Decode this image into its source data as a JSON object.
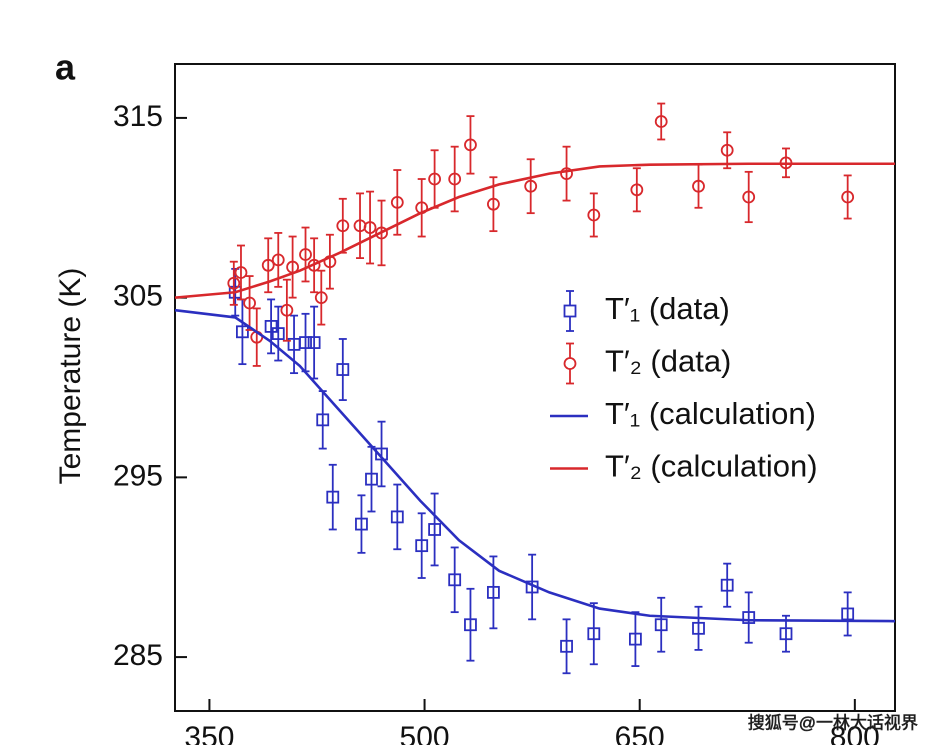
{
  "chart_data": {
    "type": "scatter",
    "panel_label": "a",
    "ylabel": "Temperature (K)",
    "xlim": [
      326,
      828
    ],
    "ylim": [
      282,
      318
    ],
    "xticks": [
      350,
      500,
      650,
      800
    ],
    "yticks": [
      285,
      295,
      305,
      315
    ],
    "legend": "right",
    "watermark": "搜狐号@一林大话视界",
    "series": [
      {
        "name": "T′₁ (data)",
        "color": "#2b2fc0",
        "marker": "square",
        "x": [
          368,
          373,
          393,
          398,
          409,
          417,
          423,
          443,
          429,
          436,
          456,
          463,
          470,
          481,
          498,
          507,
          521,
          532,
          548,
          575,
          599,
          618,
          647,
          665,
          691,
          711,
          726,
          752,
          795
        ],
        "values": [
          305.3,
          303.1,
          303.4,
          303.0,
          302.4,
          302.5,
          302.5,
          301.0,
          298.2,
          293.9,
          292.4,
          294.9,
          296.3,
          292.8,
          291.2,
          292.1,
          289.3,
          286.8,
          288.6,
          288.9,
          285.6,
          286.3,
          286.0,
          286.8,
          286.6,
          289.0,
          287.2,
          286.3,
          287.4
        ],
        "errors": [
          1.3,
          1.8,
          1.5,
          1.5,
          1.6,
          1.6,
          2,
          1.7,
          1.6,
          1.8,
          1.6,
          1.8,
          1.8,
          1.8,
          1.8,
          2,
          1.8,
          2,
          2,
          1.8,
          1.5,
          1.7,
          1.5,
          1.5,
          1.2,
          1.2,
          1.4,
          1,
          1.2
        ]
      },
      {
        "name": "T′₂ (data)",
        "color": "#d8282c",
        "marker": "circle",
        "x": [
          367,
          372,
          378,
          383,
          391,
          398,
          404,
          408,
          417,
          423,
          428,
          434,
          443,
          455,
          462,
          470,
          481,
          498,
          507,
          521,
          532,
          548,
          574,
          599,
          618,
          648,
          665,
          691,
          711,
          726,
          752,
          795
        ],
        "values": [
          305.8,
          306.4,
          304.7,
          302.8,
          306.8,
          307.1,
          304.3,
          306.7,
          307.4,
          306.8,
          305.0,
          307.0,
          309.0,
          309.0,
          308.9,
          308.6,
          310.3,
          310.0,
          311.6,
          311.6,
          313.5,
          310.2,
          311.2,
          311.9,
          309.6,
          311.0,
          314.8,
          311.2,
          313.2,
          310.6,
          312.5,
          310.6
        ],
        "errors": [
          1.2,
          1.5,
          1.5,
          1.6,
          1.5,
          1.5,
          1.7,
          1.7,
          1.5,
          1.5,
          1.5,
          1.5,
          1.5,
          1.8,
          2,
          1.8,
          1.8,
          1.6,
          1.6,
          1.8,
          1.6,
          1.5,
          1.5,
          1.5,
          1.2,
          1.2,
          1,
          1.2,
          1,
          1.4,
          0.8,
          1.2
        ]
      },
      {
        "name": "T′₁ (calculation)",
        "color": "#2b2fc0",
        "marker": "line",
        "x": [
          326,
          368,
          392,
          413,
          441,
          469,
          497,
          524,
          552,
          587,
          622,
          657,
          726,
          828
        ],
        "values": [
          304.3,
          303.9,
          302.6,
          301.2,
          298.7,
          296.2,
          293.7,
          291.5,
          289.8,
          288.6,
          287.7,
          287.3,
          287.05,
          287.0
        ]
      },
      {
        "name": "T′₂ (calculation)",
        "color": "#d8282c",
        "marker": "line",
        "x": [
          326,
          368,
          392,
          413,
          441,
          469,
          497,
          524,
          552,
          587,
          622,
          657,
          726,
          828
        ],
        "values": [
          305.0,
          305.3,
          305.9,
          306.5,
          307.5,
          308.6,
          309.7,
          310.6,
          311.3,
          311.9,
          312.3,
          312.4,
          312.45,
          312.45
        ]
      }
    ]
  }
}
